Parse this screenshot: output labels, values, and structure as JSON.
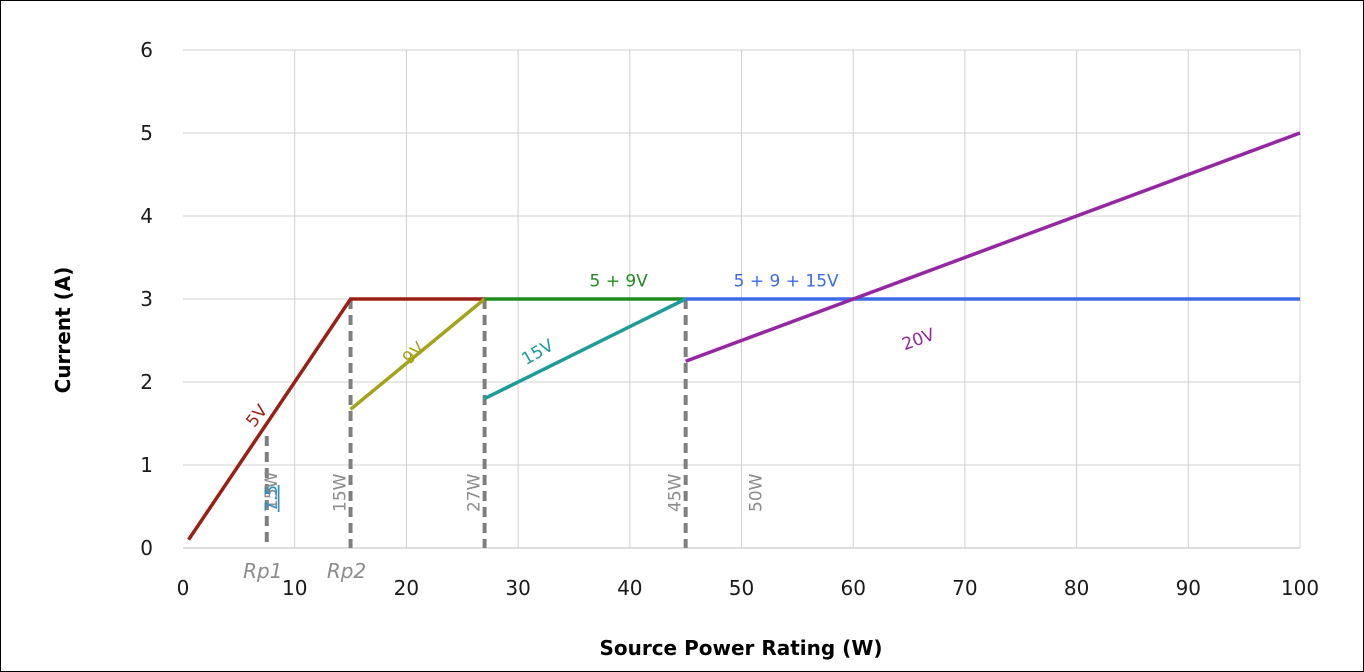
{
  "chart_data": {
    "type": "line",
    "xlabel": "Source Power Rating (W)",
    "ylabel": "Current (A)",
    "xlim": [
      0,
      100
    ],
    "ylim": [
      0,
      6
    ],
    "x_ticks": [
      0,
      10,
      20,
      30,
      40,
      50,
      60,
      70,
      80,
      90,
      100
    ],
    "y_ticks": [
      0,
      1,
      2,
      3,
      4,
      5,
      6
    ],
    "grid": true,
    "colors": {
      "5V": "#9a1f14",
      "9V": "#a3a31c",
      "5 + 9V": "#1f8c1f",
      "15V": "#1e9b9b",
      "5 + 9 + 15V": "#3d6be8",
      "20V": "#9527a3",
      "markers": "#7f7f7f",
      "gridline": "#d0d0d0"
    },
    "series": [
      {
        "name": "5V",
        "points": [
          [
            0.5,
            0.1
          ],
          [
            15,
            3
          ],
          [
            27,
            3
          ]
        ]
      },
      {
        "name": "9V",
        "points": [
          [
            15,
            1.67
          ],
          [
            27,
            3
          ]
        ]
      },
      {
        "name": "5 + 9V",
        "points": [
          [
            27,
            3
          ],
          [
            45,
            3
          ]
        ]
      },
      {
        "name": "15V",
        "points": [
          [
            27,
            1.8
          ],
          [
            45,
            3
          ]
        ]
      },
      {
        "name": "5 + 9 + 15V",
        "points": [
          [
            45,
            3
          ],
          [
            100,
            3
          ]
        ]
      },
      {
        "name": "20V",
        "points": [
          [
            45,
            2.25
          ],
          [
            100,
            5
          ]
        ]
      }
    ],
    "series_labels": [
      {
        "text": "5V",
        "at": [
          7,
          1.55
        ],
        "angle": -52
      },
      {
        "text": "9V",
        "at": [
          21,
          2.3
        ],
        "angle": -45
      },
      {
        "text": "5 + 9V",
        "at": [
          39,
          3.15
        ],
        "angle": 0
      },
      {
        "text": "15V",
        "at": [
          32,
          2.3
        ],
        "angle": -30
      },
      {
        "text": "5 + 9 + 15V",
        "at": [
          54,
          3.15
        ],
        "angle": 0
      },
      {
        "text": "20V",
        "at": [
          66,
          2.45
        ],
        "angle": -20
      }
    ],
    "vertical_markers": [
      {
        "x": 7.5,
        "y_top": 1.35,
        "label": "7.5",
        "label_overlap": "15W",
        "rp": "Rp1"
      },
      {
        "x": 15,
        "y_top": 3,
        "label": "15W",
        "rp": "Rp2"
      },
      {
        "x": 27,
        "y_top": 3,
        "label": "27W"
      },
      {
        "x": 45,
        "y_top": 3,
        "label": "45W"
      },
      {
        "x": 50,
        "label": "50W"
      }
    ]
  }
}
